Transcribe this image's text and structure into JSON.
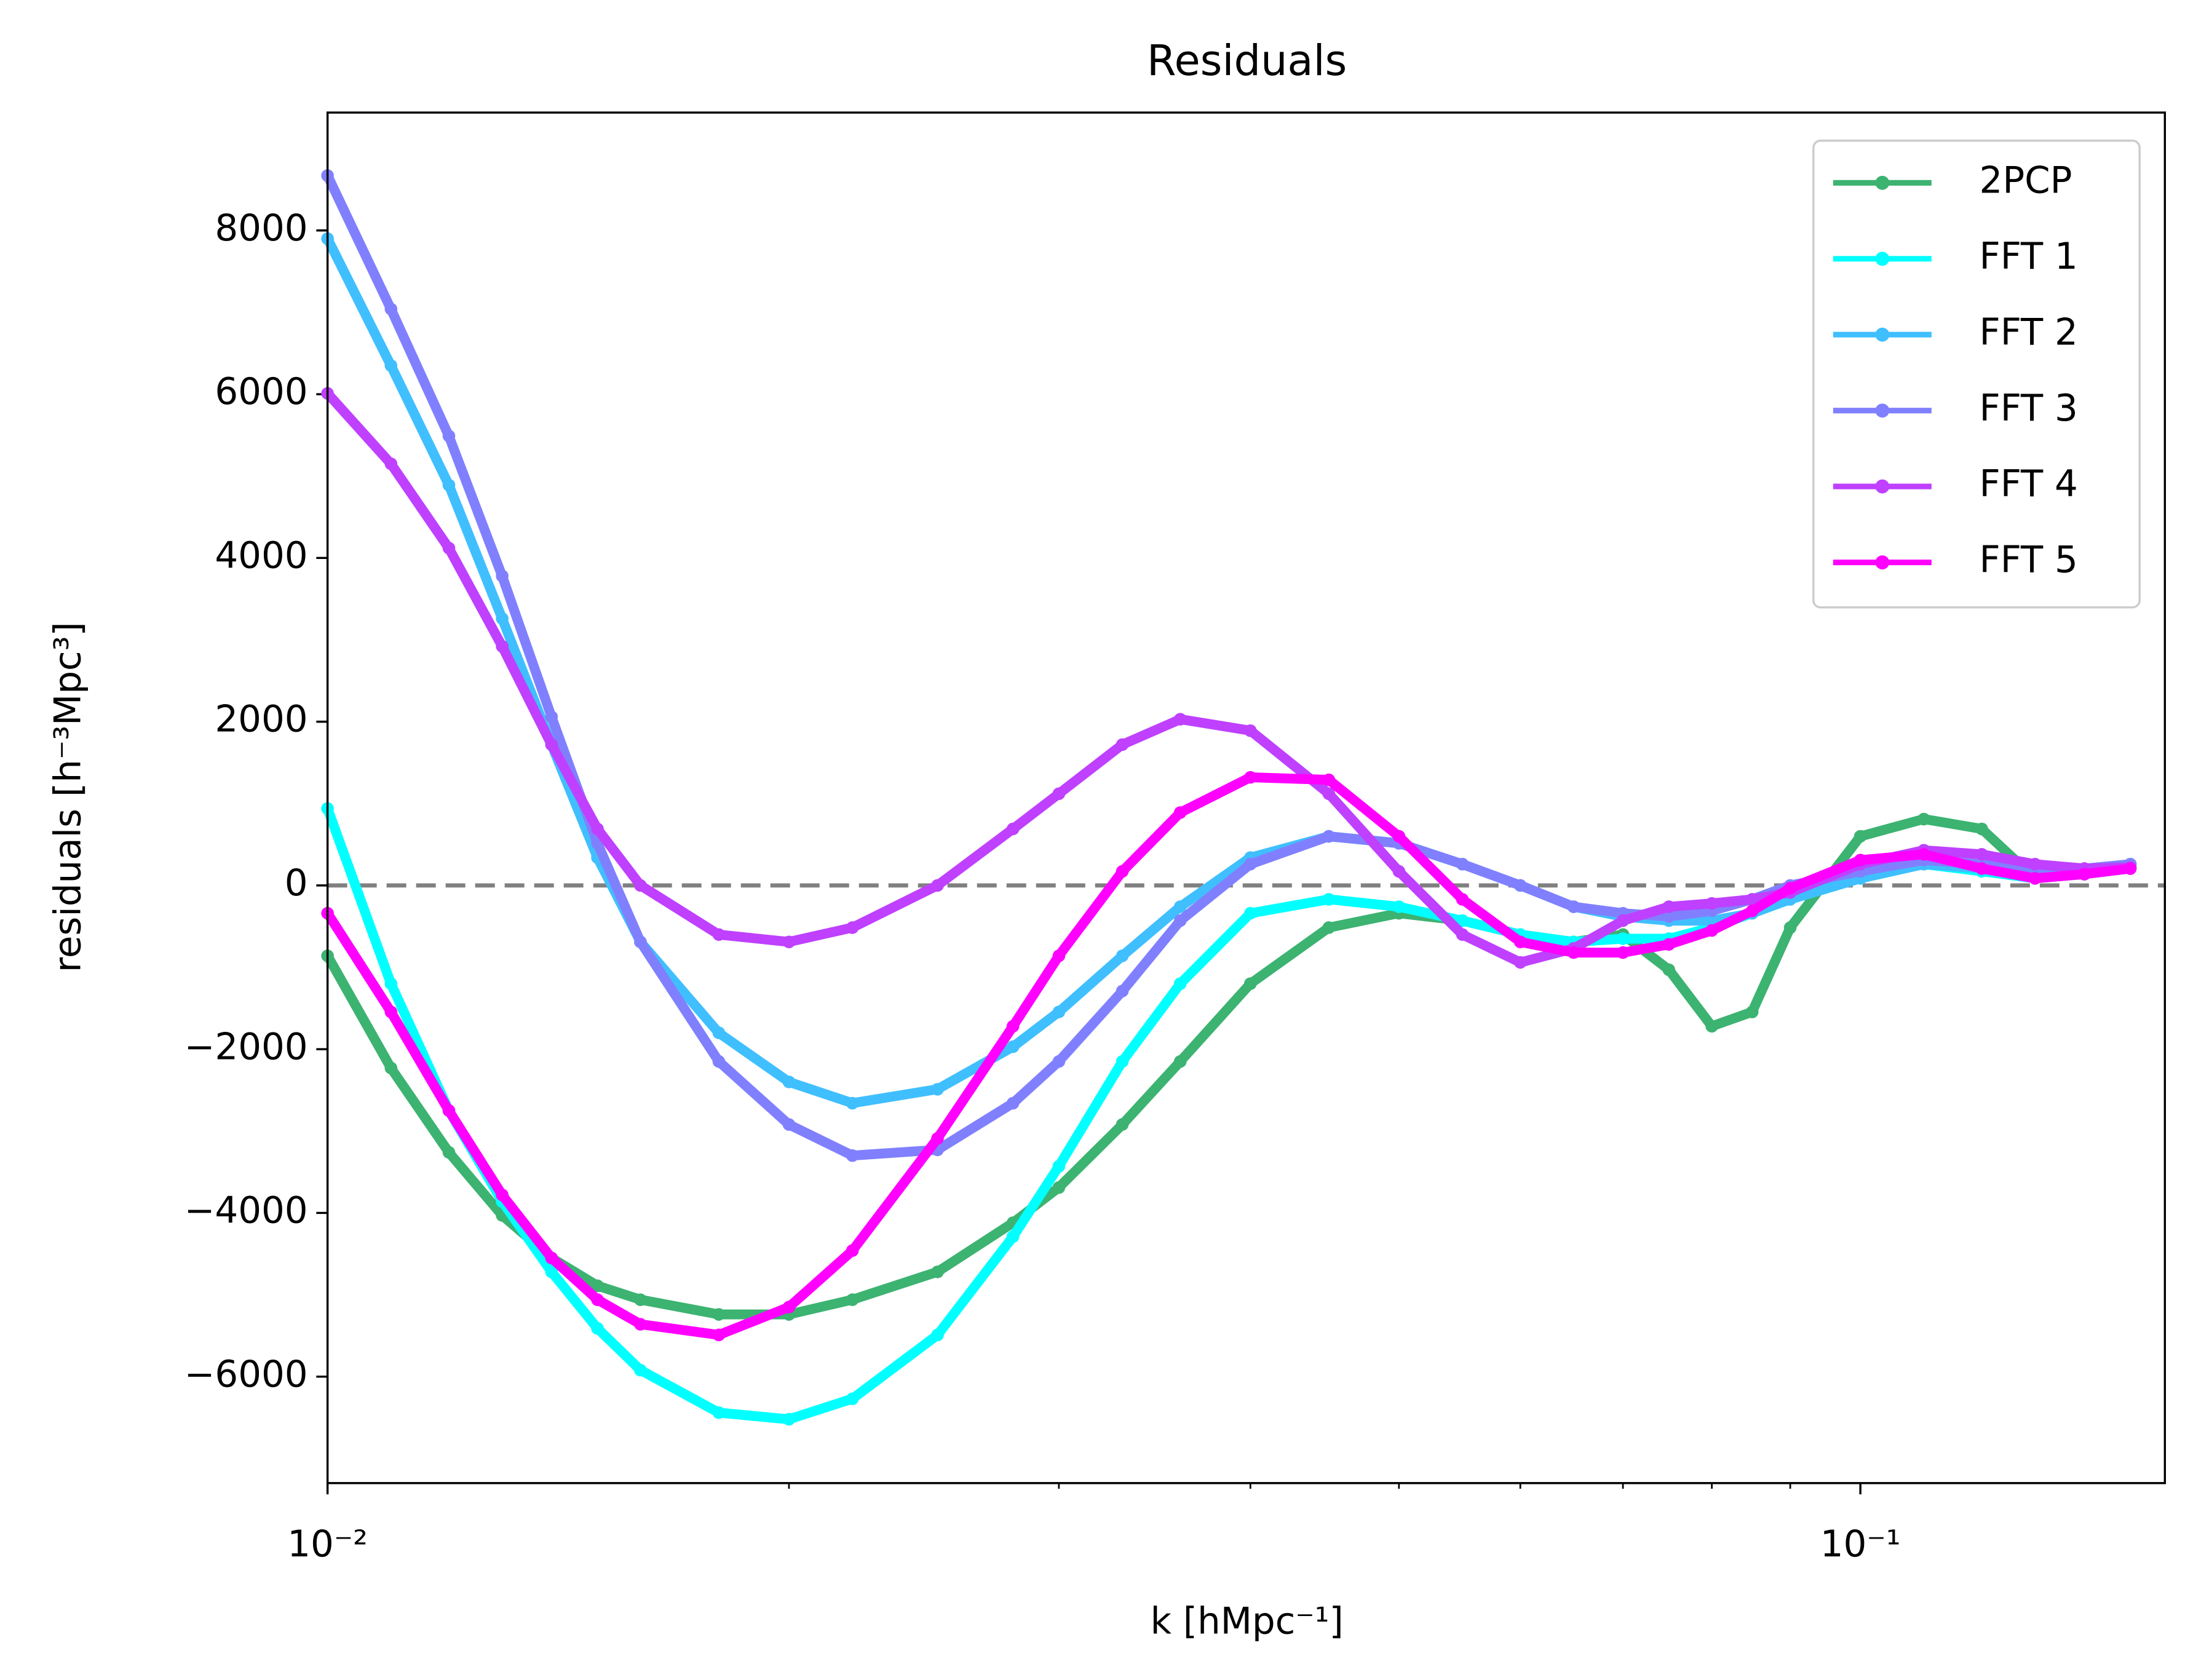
{
  "chart_data": {
    "type": "line",
    "title": "Residuals",
    "x_label": "k [hMpc⁻¹]",
    "y_label": "residuals [h⁻³Mpc³]",
    "xscale": "log",
    "xlim": [
      0.01,
      0.158
    ],
    "ylim": [
      -7300,
      9440
    ],
    "xticks": [
      {
        "value": 0.01,
        "label": "10⁻²"
      },
      {
        "value": 0.1,
        "label": "10⁻¹"
      }
    ],
    "xminorticks": [
      0.02,
      0.03,
      0.04,
      0.05,
      0.06,
      0.07,
      0.08,
      0.09
    ],
    "yticks": [
      {
        "value": -6000,
        "label": "−6000"
      },
      {
        "value": -4000,
        "label": "−4000"
      },
      {
        "value": -2000,
        "label": "−2000"
      },
      0,
      2000,
      4000,
      6000,
      8000
    ],
    "hline": 0,
    "hline_color": "#808080",
    "legend": "upper right",
    "x": [
      0.01,
      0.011,
      0.012,
      0.013,
      0.014,
      0.015,
      0.016,
      0.018,
      0.02,
      0.022,
      0.025,
      0.028,
      0.03,
      0.033,
      0.036,
      0.04,
      0.045,
      0.05,
      0.055,
      0.06,
      0.065,
      0.07,
      0.075,
      0.08,
      0.085,
      0.09,
      0.1,
      0.11,
      0.12,
      0.13,
      0.14,
      0.15
    ],
    "series": [
      {
        "name": "2PCP",
        "color": "#3cb371",
        "values": [
          -860,
          -2230,
          -3260,
          -4030,
          -4550,
          -4890,
          -5060,
          -5240,
          -5240,
          -5060,
          -4720,
          -4120,
          -3690,
          -2920,
          -2150,
          -1200,
          -515,
          -340,
          -430,
          -600,
          -690,
          -600,
          -1030,
          -1720,
          -1545,
          -515,
          600,
          810,
          690,
          86,
          172,
          260
        ]
      },
      {
        "name": "FFT 1",
        "color": "#00ffff",
        "values": [
          940,
          -1200,
          -2750,
          -3860,
          -4720,
          -5410,
          -5920,
          -6440,
          -6520,
          -6270,
          -5490,
          -4290,
          -3430,
          -2150,
          -1200,
          -340,
          -170,
          -260,
          -430,
          -600,
          -690,
          -650,
          -650,
          -515,
          -340,
          -170,
          86,
          260,
          172,
          86,
          137,
          206
        ]
      },
      {
        "name": "FFT 2",
        "color": "#40bfff",
        "values": [
          7900,
          6350,
          4890,
          3260,
          1720,
          340,
          -690,
          -1800,
          -2400,
          -2660,
          -2490,
          -1970,
          -1545,
          -860,
          -260,
          340,
          600,
          515,
          260,
          0,
          -260,
          -380,
          -430,
          -430,
          -340,
          -170,
          86,
          260,
          206,
          137,
          172,
          260
        ]
      },
      {
        "name": "FFT 3",
        "color": "#8080ff",
        "values": [
          8670,
          7040,
          5490,
          3780,
          2060,
          515,
          -690,
          -2150,
          -2920,
          -3300,
          -3230,
          -2660,
          -2150,
          -1290,
          -430,
          260,
          600,
          515,
          260,
          0,
          -260,
          -340,
          -380,
          -310,
          -170,
          0,
          172,
          310,
          260,
          172,
          206,
          260
        ]
      },
      {
        "name": "FFT 4",
        "color": "#bf40ff",
        "values": [
          6010,
          5150,
          4120,
          2920,
          1720,
          690,
          0,
          -600,
          -690,
          -515,
          0,
          690,
          1120,
          1720,
          2030,
          1890,
          1120,
          172,
          -600,
          -940,
          -770,
          -430,
          -260,
          -220,
          -170,
          -86,
          260,
          430,
          380,
          260,
          206,
          220
        ]
      },
      {
        "name": "FFT 5",
        "color": "#ff00ff",
        "values": [
          -340,
          -1545,
          -2750,
          -3780,
          -4550,
          -5060,
          -5360,
          -5490,
          -5150,
          -4460,
          -3090,
          -1720,
          -860,
          172,
          890,
          1320,
          1290,
          600,
          -170,
          -690,
          -820,
          -820,
          -720,
          -550,
          -310,
          -34,
          310,
          380,
          206,
          86,
          137,
          206
        ]
      }
    ]
  }
}
